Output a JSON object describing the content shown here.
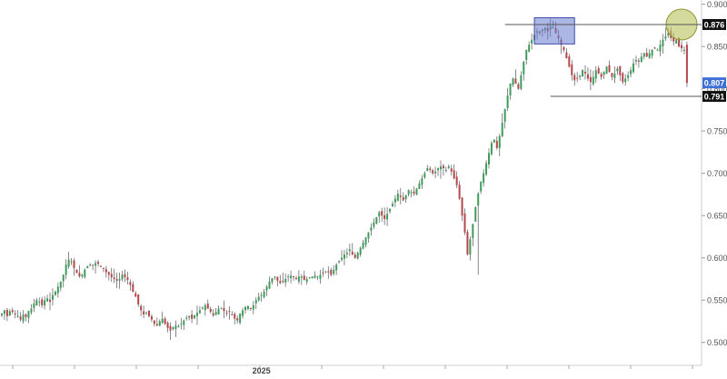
{
  "chart_data": {
    "type": "candlestick",
    "title": "",
    "xlabel": "",
    "ylabel": "",
    "ylim": [
      0.475,
      0.905
    ],
    "y_ticks": [
      "0.900",
      "0.850",
      "0.800",
      "0.750",
      "0.700",
      "0.650",
      "0.600",
      "0.550",
      "0.500"
    ],
    "y_tick_values": [
      0.9,
      0.85,
      0.8,
      0.75,
      0.7,
      0.65,
      0.6,
      0.55,
      0.5
    ],
    "x_labels": [
      {
        "label": "2025",
        "bar_index": 97
      }
    ],
    "grid": false,
    "colors": {
      "up": "#3f9b5c",
      "down": "#b5464c",
      "wick": "#555555"
    },
    "price_badges": [
      {
        "text": "0.876",
        "value": 0.876,
        "color": "#111111"
      },
      {
        "text": "0.807",
        "value": 0.807,
        "color": "#3d6fd6"
      },
      {
        "text": "0.791",
        "value": 0.791,
        "color": "#111111"
      }
    ],
    "horizontal_lines": [
      {
        "value": 0.876,
        "from_bar": 188,
        "to_bar": 258
      },
      {
        "value": 0.791,
        "from_bar": 205,
        "to_bar": 258
      }
    ],
    "highlight_rect": {
      "bar_from": 199,
      "bar_to": 214,
      "y_top": 0.884,
      "y_bottom": 0.853,
      "color": "#6a7bd1"
    },
    "highlight_circle": {
      "bar": 254,
      "value": 0.876,
      "color": "#b9c25a"
    },
    "closes": [
      0.534,
      0.538,
      0.531,
      0.537,
      0.536,
      0.533,
      0.531,
      0.527,
      0.533,
      0.53,
      0.537,
      0.54,
      0.546,
      0.55,
      0.548,
      0.544,
      0.55,
      0.552,
      0.548,
      0.556,
      0.56,
      0.566,
      0.572,
      0.58,
      0.592,
      0.598,
      0.596,
      0.588,
      0.582,
      0.578,
      0.58,
      0.586,
      0.59,
      0.592,
      0.591,
      0.594,
      0.593,
      0.59,
      0.587,
      0.583,
      0.58,
      0.577,
      0.575,
      0.573,
      0.575,
      0.58,
      0.577,
      0.574,
      0.568,
      0.56,
      0.554,
      0.545,
      0.538,
      0.533,
      0.535,
      0.531,
      0.527,
      0.522,
      0.52,
      0.525,
      0.528,
      0.522,
      0.517,
      0.514,
      0.518,
      0.52,
      0.519,
      0.522,
      0.526,
      0.529,
      0.531,
      0.528,
      0.532,
      0.535,
      0.538,
      0.541,
      0.544,
      0.54,
      0.536,
      0.532,
      0.536,
      0.54,
      0.541,
      0.537,
      0.535,
      0.536,
      0.533,
      0.528,
      0.526,
      0.534,
      0.538,
      0.542,
      0.543,
      0.54,
      0.544,
      0.55,
      0.554,
      0.556,
      0.56,
      0.566,
      0.572,
      0.576,
      0.578,
      0.573,
      0.57,
      0.572,
      0.575,
      0.578,
      0.579,
      0.577,
      0.575,
      0.578,
      0.578,
      0.574,
      0.575,
      0.577,
      0.578,
      0.579,
      0.578,
      0.58,
      0.582,
      0.584,
      0.583,
      0.58,
      0.586,
      0.592,
      0.596,
      0.6,
      0.604,
      0.606,
      0.61,
      0.604,
      0.6,
      0.606,
      0.612,
      0.618,
      0.624,
      0.63,
      0.636,
      0.642,
      0.648,
      0.654,
      0.65,
      0.646,
      0.652,
      0.658,
      0.664,
      0.67,
      0.676,
      0.672,
      0.668,
      0.674,
      0.68,
      0.678,
      0.676,
      0.682,
      0.688,
      0.694,
      0.7,
      0.706,
      0.704,
      0.7,
      0.702,
      0.706,
      0.708,
      0.706,
      0.704,
      0.708,
      0.702,
      0.694,
      0.686,
      0.67,
      0.65,
      0.63,
      0.604,
      0.622,
      0.64,
      0.66,
      0.676,
      0.69,
      0.7,
      0.712,
      0.724,
      0.736,
      0.74,
      0.73,
      0.744,
      0.76,
      0.776,
      0.792,
      0.806,
      0.812,
      0.806,
      0.8,
      0.816,
      0.832,
      0.846,
      0.852,
      0.858,
      0.864,
      0.868,
      0.866,
      0.87,
      0.872,
      0.868,
      0.874,
      0.872,
      0.866,
      0.86,
      0.852,
      0.846,
      0.836,
      0.826,
      0.816,
      0.81,
      0.812,
      0.816,
      0.822,
      0.818,
      0.812,
      0.808,
      0.814,
      0.822,
      0.818,
      0.814,
      0.82,
      0.826,
      0.82,
      0.814,
      0.818,
      0.824,
      0.816,
      0.808,
      0.812,
      0.816,
      0.822,
      0.83,
      0.834,
      0.832,
      0.838,
      0.842,
      0.838,
      0.842,
      0.846,
      0.848,
      0.846,
      0.852,
      0.858,
      0.862,
      0.866,
      0.86,
      0.856,
      0.858,
      0.85,
      0.848,
      0.846,
      0.807
    ]
  }
}
